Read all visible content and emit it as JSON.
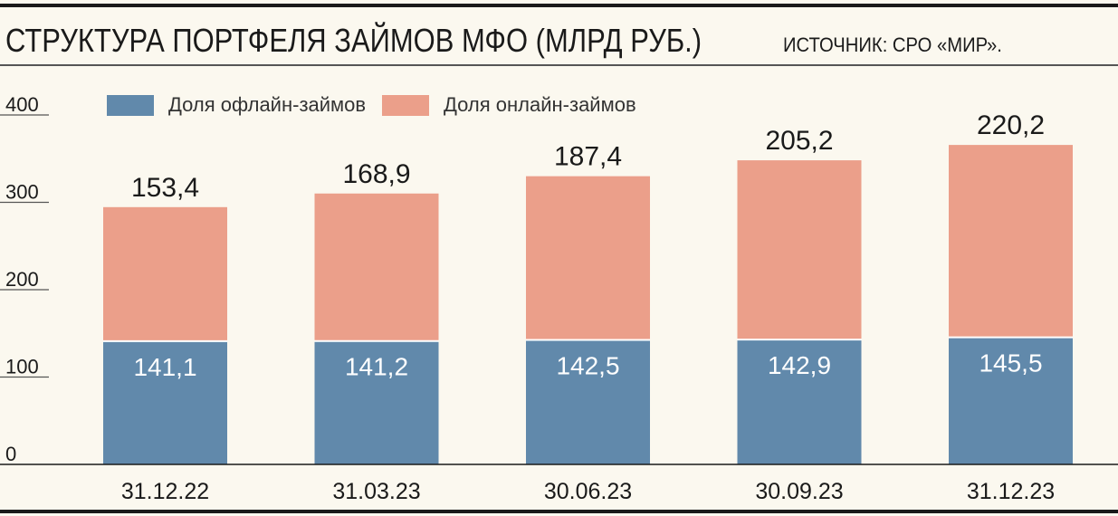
{
  "header": {
    "title": "СТРУКТУРА ПОРТФЕЛЯ ЗАЙМОВ МФО (МЛРД РУБ.)",
    "source": "ИСТОЧНИК: СРО «МИР»."
  },
  "chart_data": {
    "type": "bar",
    "stacked": true,
    "categories": [
      "31.12.22",
      "31.03.23",
      "30.06.23",
      "30.09.23",
      "31.12.23"
    ],
    "series": [
      {
        "name": "Доля офлайн-займов",
        "color": "#6189ab",
        "values": [
          141.1,
          141.2,
          142.5,
          142.9,
          145.5
        ]
      },
      {
        "name": "Доля онлайн-займов",
        "color": "#eb9f8a",
        "values": [
          153.4,
          168.9,
          187.4,
          205.2,
          220.2
        ]
      }
    ],
    "bar_labels": {
      "inner": [
        "141,1",
        "141,2",
        "142,5",
        "142,9",
        "145,5"
      ],
      "top": [
        "153,4",
        "168,9",
        "187,4",
        "205,2",
        "220,2"
      ]
    },
    "y_ticks": [
      0,
      100,
      200,
      300,
      400
    ],
    "y_tick_labels": [
      "0",
      "100",
      "200",
      "300",
      "400"
    ],
    "ylim": [
      0,
      400
    ],
    "title": "СТРУКТУРА ПОРТФЕЛЯ ЗАЙМОВ МФО (МЛРД РУБ.)",
    "xlabel": "",
    "ylabel": "",
    "grid": false,
    "legend_position": "top-left"
  }
}
